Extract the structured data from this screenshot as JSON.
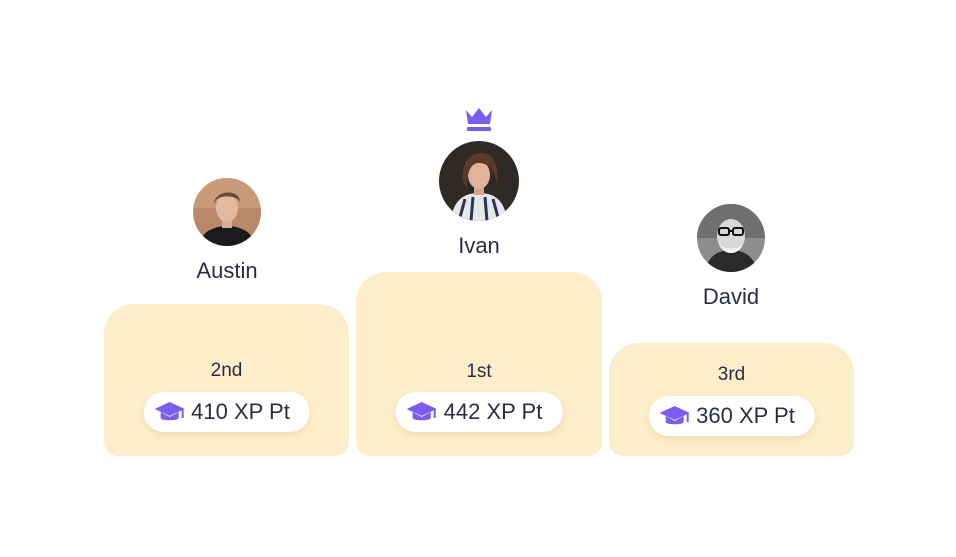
{
  "leaderboard": {
    "podiums": [
      {
        "rank": "2nd",
        "score": "410 XP Pt"
      },
      {
        "rank": "1st",
        "score": "442 XP Pt"
      },
      {
        "rank": "3rd",
        "score": "360 XP Pt"
      }
    ],
    "players": [
      {
        "name": "Austin"
      },
      {
        "name": "Ivan"
      },
      {
        "name": "David"
      }
    ],
    "icons": {
      "crown": "crown-icon",
      "score": "graduation-cap-icon"
    },
    "colors": {
      "accent": "#7b5cf0",
      "podium": "#fdeecb",
      "text": "#2a2d45"
    }
  }
}
